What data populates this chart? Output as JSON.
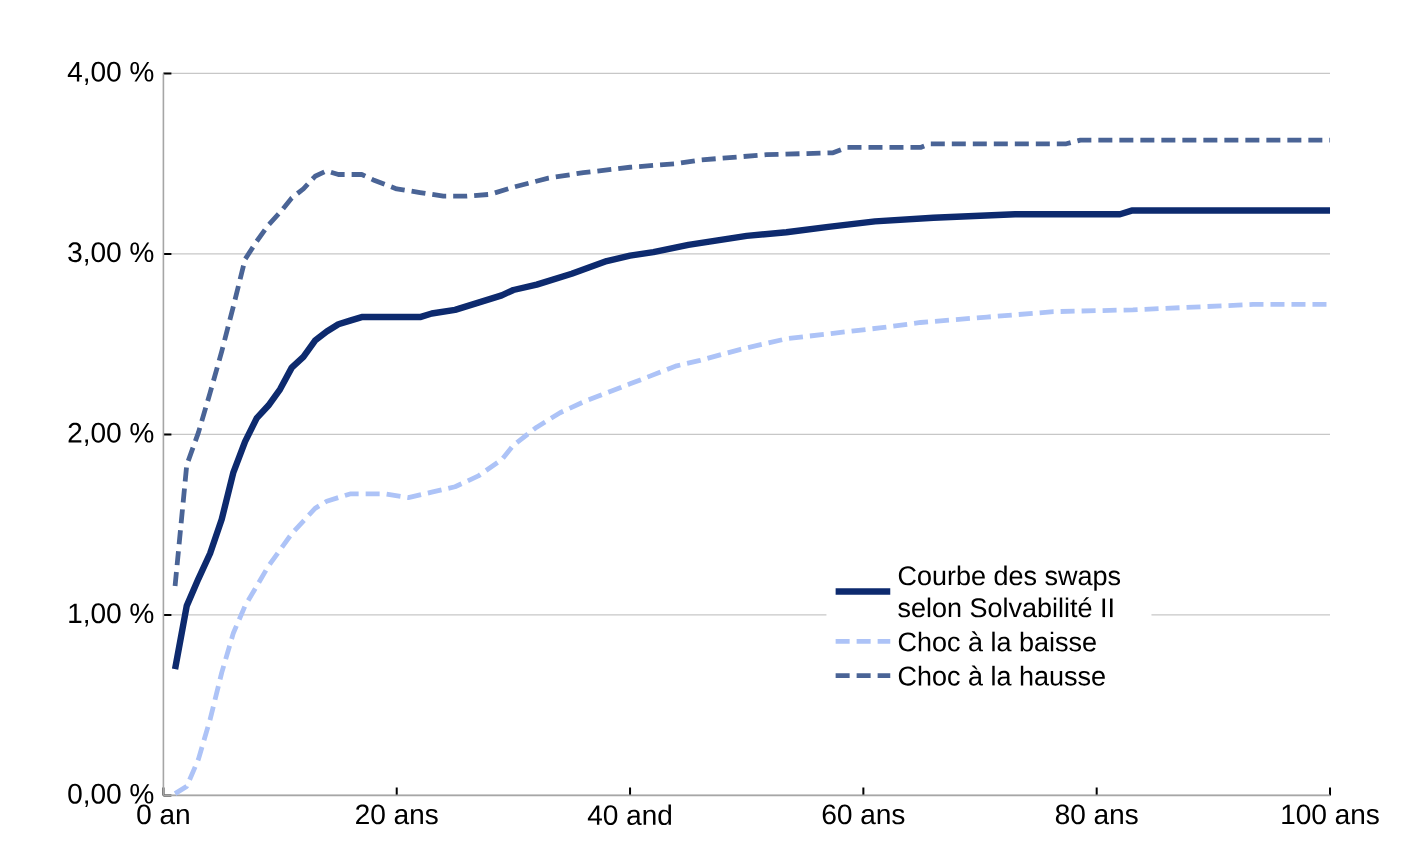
{
  "chart_data": {
    "type": "line",
    "xlim": [
      0,
      100
    ],
    "xticks": [
      {
        "value": 0,
        "label": "0 an"
      },
      {
        "value": 20,
        "label": "20 ans"
      },
      {
        "value": 40,
        "label": "40 and"
      },
      {
        "value": 60,
        "label": "60 ans"
      },
      {
        "value": 80,
        "label": "80 ans"
      },
      {
        "value": 100,
        "label": "100 ans"
      }
    ],
    "ylim": [
      0,
      4
    ],
    "yticks": [
      {
        "value": 0,
        "label": "0,00 %"
      },
      {
        "value": 1,
        "label": "1,00 %"
      },
      {
        "value": 2,
        "label": "2,00 %"
      },
      {
        "value": 3,
        "label": "3,00 %"
      },
      {
        "value": 4,
        "label": "4,00 %"
      }
    ],
    "grid": "y",
    "legend": "bottom right",
    "series": [
      {
        "name": "Courbe des swaps selon Solvabilité II",
        "color": "#0d2a6e",
        "line_style": "solid",
        "x": [
          1,
          2,
          3,
          4,
          5,
          6,
          7,
          8,
          9,
          10,
          11,
          12,
          13,
          14,
          15,
          16,
          17,
          20,
          22,
          23,
          25,
          27,
          29,
          30,
          32,
          35,
          38,
          40,
          42,
          45,
          50,
          53.4,
          57,
          61,
          66,
          73,
          82,
          83,
          100
        ],
        "values": [
          0.7,
          1.05,
          1.2,
          1.34,
          1.53,
          1.79,
          1.96,
          2.09,
          2.16,
          2.25,
          2.37,
          2.43,
          2.52,
          2.57,
          2.61,
          2.63,
          2.65,
          2.65,
          2.65,
          2.67,
          2.69,
          2.73,
          2.77,
          2.8,
          2.83,
          2.89,
          2.96,
          2.99,
          3.01,
          3.05,
          3.1,
          3.12,
          3.15,
          3.18,
          3.2,
          3.22,
          3.22,
          3.24,
          3.24
        ]
      },
      {
        "name": "Choc à la baisse",
        "color": "#adc3f7",
        "line_style": "dashed",
        "x": [
          1,
          2,
          3,
          4,
          5,
          6,
          7,
          8,
          9,
          10,
          11,
          12,
          13,
          14,
          16,
          19,
          21,
          23,
          25,
          27,
          29,
          30,
          32,
          34,
          36,
          38,
          40,
          42,
          44,
          46,
          49.4,
          53.4,
          57.4,
          61.4,
          64.9,
          70.6,
          76.3,
          83.1,
          93.4,
          100
        ],
        "values": [
          0.01,
          0.05,
          0.2,
          0.42,
          0.68,
          0.9,
          1.05,
          1.16,
          1.27,
          1.36,
          1.45,
          1.52,
          1.59,
          1.63,
          1.67,
          1.67,
          1.65,
          1.68,
          1.71,
          1.77,
          1.86,
          1.94,
          2.04,
          2.12,
          2.18,
          2.23,
          2.28,
          2.33,
          2.38,
          2.41,
          2.47,
          2.53,
          2.56,
          2.59,
          2.62,
          2.65,
          2.68,
          2.69,
          2.72,
          2.72
        ]
      },
      {
        "name": "Choc à la hausse",
        "color": "#4a6496",
        "line_style": "dashed",
        "x": [
          1,
          2,
          3,
          4,
          5,
          6,
          7,
          8,
          9,
          10,
          11,
          12,
          13,
          14,
          15,
          17,
          18,
          20,
          22,
          24,
          26,
          28,
          30,
          33,
          36,
          40,
          44,
          46,
          51.7,
          57.4,
          58.6,
          64.9,
          65.7,
          77.4,
          78.6,
          100
        ],
        "values": [
          1.16,
          1.83,
          2.01,
          2.23,
          2.46,
          2.71,
          2.97,
          3.07,
          3.16,
          3.23,
          3.31,
          3.36,
          3.43,
          3.46,
          3.44,
          3.44,
          3.41,
          3.36,
          3.34,
          3.32,
          3.32,
          3.33,
          3.37,
          3.42,
          3.45,
          3.48,
          3.5,
          3.52,
          3.55,
          3.56,
          3.59,
          3.59,
          3.61,
          3.61,
          3.63,
          3.63
        ]
      }
    ]
  }
}
